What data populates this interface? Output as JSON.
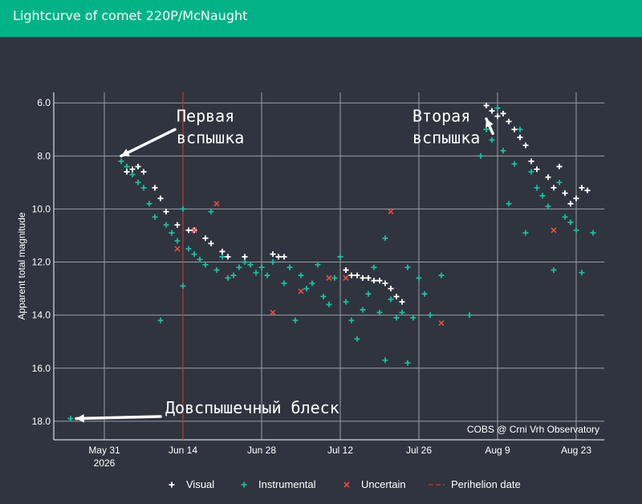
{
  "header": {
    "title": "Lightcurve of comet 220P/McNaught",
    "bg_color": "#00b386"
  },
  "chart_data": {
    "type": "scatter",
    "ylabel": "Apparent total magnitude",
    "y_inverted": true,
    "ylim": [
      5.6,
      18.7
    ],
    "xlim": [
      "2026-05-22",
      "2026-08-28"
    ],
    "y_ticks": [
      "6.0",
      "8.0",
      "10.0",
      "12.0",
      "14.0",
      "16.0",
      "18.0"
    ],
    "x_ticks": [
      {
        "date": "2026-05-31",
        "line1": "May 31",
        "line2": "2026"
      },
      {
        "date": "2026-06-14",
        "line1": "Jun 14",
        "line2": ""
      },
      {
        "date": "2026-06-28",
        "line1": "Jun 28",
        "line2": ""
      },
      {
        "date": "2026-07-12",
        "line1": "Jul 12",
        "line2": ""
      },
      {
        "date": "2026-07-26",
        "line1": "Jul 26",
        "line2": ""
      },
      {
        "date": "2026-08-09",
        "line1": "Aug 9",
        "line2": ""
      },
      {
        "date": "2026-08-23",
        "line1": "Aug 23",
        "line2": ""
      }
    ],
    "perihelion_date": "2026-06-14",
    "grid": true,
    "legend_position": "bottom",
    "watermark": "COBS @ Crni Vrh Observatory",
    "colors": {
      "visual": "#ffffff",
      "instrumental": "#1abc9c",
      "uncertain": "#e74c3c",
      "perihelion": "#c0392b",
      "grid": "#9a9ea6",
      "axis_text": "#ffffff"
    },
    "series": [
      {
        "name": "Visual",
        "symbol": "plus",
        "points": [
          [
            "2026-06-04",
            8.6
          ],
          [
            "2026-06-05",
            8.5
          ],
          [
            "2026-06-06",
            8.4
          ],
          [
            "2026-06-07",
            8.6
          ],
          [
            "2026-06-09",
            9.2
          ],
          [
            "2026-06-10",
            9.6
          ],
          [
            "2026-06-11",
            10.1
          ],
          [
            "2026-06-13",
            10.6
          ],
          [
            "2026-06-15",
            10.8
          ],
          [
            "2026-06-16",
            10.8
          ],
          [
            "2026-06-18",
            11.1
          ],
          [
            "2026-06-19",
            11.3
          ],
          [
            "2026-06-21",
            11.6
          ],
          [
            "2026-06-22",
            11.8
          ],
          [
            "2026-06-25",
            11.8
          ],
          [
            "2026-06-30",
            11.7
          ],
          [
            "2026-07-01",
            11.8
          ],
          [
            "2026-07-02",
            11.8
          ],
          [
            "2026-07-13",
            12.3
          ],
          [
            "2026-07-14",
            12.5
          ],
          [
            "2026-07-15",
            12.5
          ],
          [
            "2026-07-16",
            12.6
          ],
          [
            "2026-07-17",
            12.6
          ],
          [
            "2026-07-18",
            12.7
          ],
          [
            "2026-07-19",
            12.7
          ],
          [
            "2026-07-20",
            12.8
          ],
          [
            "2026-07-21",
            13.0
          ],
          [
            "2026-07-22",
            13.3
          ],
          [
            "2026-07-23",
            13.5
          ],
          [
            "2026-08-07",
            6.1
          ],
          [
            "2026-08-08",
            6.3
          ],
          [
            "2026-08-09",
            6.5
          ],
          [
            "2026-08-10",
            6.4
          ],
          [
            "2026-08-11",
            6.7
          ],
          [
            "2026-08-12",
            7.0
          ],
          [
            "2026-08-13",
            7.3
          ],
          [
            "2026-08-14",
            7.6
          ],
          [
            "2026-08-15",
            8.2
          ],
          [
            "2026-08-16",
            8.5
          ],
          [
            "2026-08-18",
            8.8
          ],
          [
            "2026-08-19",
            9.2
          ],
          [
            "2026-08-20",
            8.4
          ],
          [
            "2026-08-21",
            9.4
          ],
          [
            "2026-08-22",
            9.8
          ],
          [
            "2026-08-23",
            9.6
          ],
          [
            "2026-08-25",
            9.3
          ],
          [
            "2026-08-24",
            9.2
          ]
        ]
      },
      {
        "name": "Instrumental",
        "symbol": "plus",
        "points": [
          [
            "2026-05-25",
            17.9
          ],
          [
            "2026-06-03",
            8.2
          ],
          [
            "2026-06-04",
            8.4
          ],
          [
            "2026-06-05",
            8.7
          ],
          [
            "2026-06-06",
            9.0
          ],
          [
            "2026-06-07",
            9.2
          ],
          [
            "2026-06-08",
            9.8
          ],
          [
            "2026-06-09",
            10.3
          ],
          [
            "2026-06-10",
            14.2
          ],
          [
            "2026-06-11",
            10.6
          ],
          [
            "2026-06-12",
            10.9
          ],
          [
            "2026-06-13",
            11.2
          ],
          [
            "2026-06-14",
            10.0
          ],
          [
            "2026-06-14",
            12.9
          ],
          [
            "2026-06-15",
            11.5
          ],
          [
            "2026-06-16",
            11.7
          ],
          [
            "2026-06-17",
            11.9
          ],
          [
            "2026-06-18",
            12.1
          ],
          [
            "2026-06-19",
            10.1
          ],
          [
            "2026-06-20",
            12.3
          ],
          [
            "2026-06-21",
            11.8
          ],
          [
            "2026-06-22",
            12.6
          ],
          [
            "2026-06-23",
            12.5
          ],
          [
            "2026-06-24",
            12.2
          ],
          [
            "2026-06-25",
            12.0
          ],
          [
            "2026-06-26",
            12.1
          ],
          [
            "2026-06-27",
            12.4
          ],
          [
            "2026-06-28",
            12.2
          ],
          [
            "2026-06-29",
            12.5
          ],
          [
            "2026-06-30",
            12.0
          ],
          [
            "2026-07-02",
            12.8
          ],
          [
            "2026-07-03",
            12.2
          ],
          [
            "2026-07-04",
            14.2
          ],
          [
            "2026-07-05",
            12.5
          ],
          [
            "2026-07-06",
            13.0
          ],
          [
            "2026-07-07",
            12.8
          ],
          [
            "2026-07-08",
            12.1
          ],
          [
            "2026-07-09",
            13.3
          ],
          [
            "2026-07-10",
            13.6
          ],
          [
            "2026-07-11",
            12.6
          ],
          [
            "2026-07-12",
            11.8
          ],
          [
            "2026-07-13",
            13.5
          ],
          [
            "2026-07-14",
            14.2
          ],
          [
            "2026-07-15",
            14.9
          ],
          [
            "2026-07-16",
            13.8
          ],
          [
            "2026-07-17",
            13.2
          ],
          [
            "2026-07-18",
            12.2
          ],
          [
            "2026-07-19",
            13.9
          ],
          [
            "2026-07-20",
            11.1
          ],
          [
            "2026-07-21",
            13.4
          ],
          [
            "2026-07-22",
            14.1
          ],
          [
            "2026-07-23",
            13.9
          ],
          [
            "2026-07-24",
            12.2
          ],
          [
            "2026-07-25",
            14.1
          ],
          [
            "2026-07-26",
            12.6
          ],
          [
            "2026-07-27",
            13.2
          ],
          [
            "2026-07-28",
            14.0
          ],
          [
            "2026-07-20",
            15.7
          ],
          [
            "2026-07-24",
            15.8
          ],
          [
            "2026-07-30",
            12.5
          ],
          [
            "2026-08-04",
            14.0
          ],
          [
            "2026-08-06",
            8.0
          ],
          [
            "2026-08-07",
            7.0
          ],
          [
            "2026-08-08",
            7.4
          ],
          [
            "2026-08-09",
            6.2
          ],
          [
            "2026-08-10",
            7.8
          ],
          [
            "2026-08-11",
            9.8
          ],
          [
            "2026-08-12",
            8.3
          ],
          [
            "2026-08-13",
            7.0
          ],
          [
            "2026-08-14",
            10.9
          ],
          [
            "2026-08-15",
            8.6
          ],
          [
            "2026-08-16",
            9.2
          ],
          [
            "2026-08-17",
            9.5
          ],
          [
            "2026-08-18",
            9.9
          ],
          [
            "2026-08-19",
            12.3
          ],
          [
            "2026-08-20",
            9.0
          ],
          [
            "2026-08-21",
            10.3
          ],
          [
            "2026-08-22",
            10.5
          ],
          [
            "2026-08-23",
            10.8
          ],
          [
            "2026-08-24",
            12.4
          ],
          [
            "2026-08-26",
            10.9
          ]
        ]
      },
      {
        "name": "Uncertain",
        "symbol": "cross",
        "points": [
          [
            "2026-06-13",
            11.5
          ],
          [
            "2026-06-16",
            10.8
          ],
          [
            "2026-06-20",
            9.8
          ],
          [
            "2026-06-30",
            13.9
          ],
          [
            "2026-07-05",
            13.1
          ],
          [
            "2026-07-10",
            12.6
          ],
          [
            "2026-07-13",
            12.6
          ],
          [
            "2026-07-21",
            10.1
          ],
          [
            "2026-07-30",
            14.3
          ],
          [
            "2026-08-19",
            10.8
          ]
        ]
      },
      {
        "name": "Perihelion date",
        "symbol": "dash",
        "points": []
      }
    ],
    "annotations": [
      {
        "line1": "Первая",
        "line2": "вспышка",
        "date": "2026-06-14",
        "mag": 6.7,
        "arrow_to": [
          "2026-06-03",
          8.0
        ]
      },
      {
        "line1": "Вторая",
        "line2": "вспышка",
        "date": "2026-07-26",
        "mag": 6.7,
        "arrow_to": [
          "2026-08-07",
          6.6
        ]
      },
      {
        "line1": "Довспышечный блеск",
        "line2": "",
        "date": "2026-06-12",
        "mag": 17.7,
        "arrow_to": [
          "2026-05-26",
          17.9
        ]
      }
    ]
  }
}
